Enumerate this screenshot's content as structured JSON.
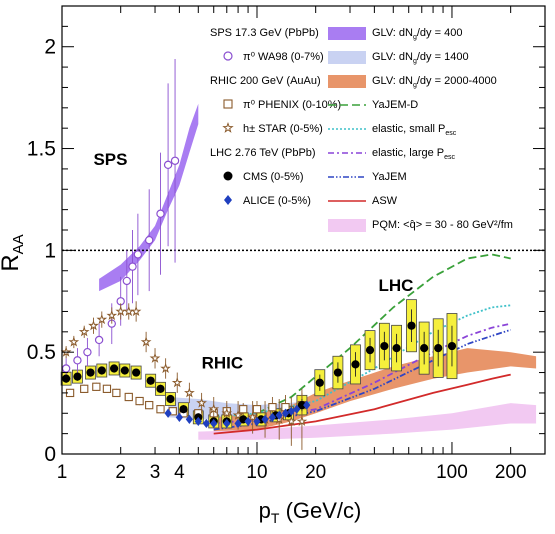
{
  "chart_data": {
    "type": "scatter",
    "xscale": "log",
    "xlim": [
      1,
      300
    ],
    "ylim": [
      0,
      2.2
    ],
    "xlabel": "p",
    "xlabel_sub": "T",
    "xlabel_units": " (GeV/c)",
    "ylabel": "R",
    "ylabel_sub": "AA",
    "x_ticks": [
      {
        "v": 1,
        "label": "1"
      },
      {
        "v": 2,
        "label": "2"
      },
      {
        "v": 3,
        "label": "3"
      },
      {
        "v": 4,
        "label": "4"
      },
      {
        "v": 10,
        "label": "10"
      },
      {
        "v": 20,
        "label": "20"
      },
      {
        "v": 100,
        "label": "100"
      },
      {
        "v": 200,
        "label": "200"
      }
    ],
    "y_ticks": [
      {
        "v": 0,
        "label": "0"
      },
      {
        "v": 0.5,
        "label": "0.5"
      },
      {
        "v": 1,
        "label": "1"
      },
      {
        "v": 1.5,
        "label": "1.5"
      },
      {
        "v": 2,
        "label": "2"
      }
    ],
    "reference_line": 1,
    "annotations": [
      {
        "text": "SPS",
        "x": 1.45,
        "y": 1.42,
        "color": "#8a4fd0"
      },
      {
        "text": "RHIC",
        "x": 5.2,
        "y": 0.42,
        "color": "#8a5a2b"
      },
      {
        "text": "LHC",
        "x": 42,
        "y": 0.8,
        "color": "#000000"
      }
    ],
    "legend_left": {
      "groups": [
        {
          "header": "SPS 17.3 GeV (PbPb)",
          "entries": [
            {
              "marker": "open-circle",
              "label": "π⁰  WA98 (0-7%)"
            }
          ]
        },
        {
          "header": "RHIC 200 GeV (AuAu)",
          "entries": [
            {
              "marker": "open-square",
              "label": "π⁰  PHENIX (0-10%)"
            },
            {
              "marker": "open-star",
              "label": "h±  STAR (0-5%)"
            }
          ]
        },
        {
          "header": "LHC 2.76 TeV (PbPb)",
          "entries": [
            {
              "marker": "filled-circle",
              "label": "CMS (0-5%)"
            },
            {
              "marker": "filled-diamond",
              "label": "ALICE (0-5%)"
            }
          ]
        }
      ]
    },
    "legend_right": [
      {
        "style": "band",
        "color": "#a97df2",
        "label": "GLV: dN",
        "sub": "g",
        "after": "/dy = 400"
      },
      {
        "style": "band",
        "color": "#c9d2f2",
        "label": "GLV: dN",
        "sub": "g",
        "after": "/dy = 1400"
      },
      {
        "style": "band",
        "color": "#e8956a",
        "label": "GLV: dN",
        "sub": "g",
        "after": "/dy = 2000-4000"
      },
      {
        "style": "dashed",
        "color": "#3aa13a",
        "label": "YaJEM-D",
        "sub": "",
        "after": ""
      },
      {
        "style": "dotted",
        "color": "#3fc1c9",
        "label": "elastic, small P",
        "sub": "esc",
        "after": ""
      },
      {
        "style": "dashdot",
        "color": "#8a44d8",
        "label": "elastic, large P",
        "sub": "esc",
        "after": ""
      },
      {
        "style": "dashdotdot",
        "color": "#2f45c4",
        "label": "YaJEM",
        "sub": "",
        "after": ""
      },
      {
        "style": "solid",
        "color": "#d22a2a",
        "label": "ASW",
        "sub": "",
        "after": ""
      },
      {
        "style": "band",
        "color": "#f2c9f2",
        "label": "PQM: <q̂> = 30 - 80 GeV",
        "sub": "",
        "after": "²/fm"
      }
    ],
    "series": [
      {
        "name": "WA98",
        "marker": "open-circle",
        "color": "#8a4fd0",
        "x": [
          0.9,
          1.05,
          1.2,
          1.35,
          1.55,
          1.8,
          2.0,
          2.15,
          2.3,
          2.45,
          2.8,
          3.2,
          3.5,
          3.8
        ],
        "y": [
          0.38,
          0.42,
          0.46,
          0.5,
          0.56,
          0.64,
          0.75,
          0.85,
          0.92,
          0.98,
          1.05,
          1.18,
          1.42,
          1.44
        ],
        "err": [
          0.04,
          0.05,
          0.06,
          0.07,
          0.08,
          0.1,
          0.12,
          0.15,
          0.18,
          0.2,
          0.25,
          0.3,
          0.4,
          0.5
        ]
      },
      {
        "name": "PHENIX",
        "marker": "open-square",
        "color": "#8a5a2b",
        "x": [
          1.1,
          1.3,
          1.5,
          1.7,
          1.9,
          2.2,
          2.5,
          2.8,
          3.2,
          3.7,
          4.2,
          5.0,
          6.0,
          7.0,
          8.5,
          10.0,
          12.0,
          14.0,
          17.0
        ],
        "y": [
          0.3,
          0.32,
          0.33,
          0.32,
          0.3,
          0.28,
          0.26,
          0.24,
          0.22,
          0.21,
          0.2,
          0.2,
          0.2,
          0.21,
          0.22,
          0.22,
          0.23,
          0.23,
          0.24
        ],
        "err": [
          0.02,
          0.02,
          0.02,
          0.02,
          0.02,
          0.02,
          0.02,
          0.02,
          0.02,
          0.02,
          0.02,
          0.02,
          0.03,
          0.03,
          0.03,
          0.04,
          0.05,
          0.06,
          0.08
        ]
      },
      {
        "name": "STAR",
        "marker": "open-star",
        "color": "#8a5a2b",
        "x": [
          1.05,
          1.15,
          1.3,
          1.45,
          1.6,
          1.8,
          2.0,
          2.2,
          2.4,
          2.7,
          3.0,
          3.4,
          3.9,
          4.5,
          5.2,
          6.0,
          7.0,
          8.0,
          9.5,
          11.0,
          13.0,
          15.0,
          17.0
        ],
        "y": [
          0.5,
          0.55,
          0.6,
          0.63,
          0.66,
          0.68,
          0.7,
          0.7,
          0.7,
          0.55,
          0.47,
          0.42,
          0.35,
          0.3,
          0.25,
          0.22,
          0.2,
          0.19,
          0.18,
          0.17,
          0.17,
          0.16,
          0.16
        ],
        "err": [
          0.03,
          0.03,
          0.03,
          0.04,
          0.04,
          0.04,
          0.04,
          0.04,
          0.05,
          0.05,
          0.05,
          0.05,
          0.05,
          0.05,
          0.05,
          0.06,
          0.06,
          0.07,
          0.08,
          0.09,
          0.1,
          0.12,
          0.14
        ]
      },
      {
        "name": "CMS",
        "marker": "filled-circle",
        "color": "#000000",
        "x": [
          1.05,
          1.2,
          1.4,
          1.6,
          1.85,
          2.1,
          2.4,
          2.85,
          3.2,
          3.6,
          4.2,
          5.0,
          6.0,
          7.0,
          8.5,
          10.5,
          12.5,
          14.5,
          17.0,
          21.0,
          26.0,
          32.0,
          38.0,
          45.0,
          52.0,
          62.0,
          72.0,
          85.0,
          100.0
        ],
        "y": [
          0.37,
          0.38,
          0.4,
          0.41,
          0.42,
          0.41,
          0.4,
          0.36,
          0.32,
          0.27,
          0.22,
          0.18,
          0.16,
          0.16,
          0.17,
          0.17,
          0.19,
          0.2,
          0.24,
          0.35,
          0.4,
          0.44,
          0.51,
          0.53,
          0.52,
          0.63,
          0.52,
          0.52,
          0.53
        ],
        "err": [
          0.02,
          0.02,
          0.02,
          0.02,
          0.02,
          0.02,
          0.02,
          0.02,
          0.02,
          0.02,
          0.02,
          0.02,
          0.02,
          0.02,
          0.02,
          0.02,
          0.02,
          0.02,
          0.03,
          0.04,
          0.05,
          0.06,
          0.06,
          0.07,
          0.07,
          0.08,
          0.08,
          0.09,
          0.1
        ]
      },
      {
        "name": "ALICE",
        "marker": "filled-diamond",
        "color": "#1f3fbf",
        "x": [
          3.5,
          4.0,
          4.5,
          5.0,
          5.5,
          6.0,
          7.0,
          8.0,
          9.0,
          10.0,
          11.0,
          12.0,
          13.0,
          14.0,
          15.0,
          16.0,
          18.0
        ],
        "y": [
          0.2,
          0.18,
          0.17,
          0.16,
          0.15,
          0.15,
          0.15,
          0.15,
          0.16,
          0.16,
          0.17,
          0.18,
          0.19,
          0.2,
          0.21,
          0.22,
          0.24
        ],
        "err": [
          0.01,
          0.01,
          0.01,
          0.01,
          0.01,
          0.01,
          0.01,
          0.01,
          0.01,
          0.01,
          0.01,
          0.01,
          0.01,
          0.02,
          0.02,
          0.02,
          0.02
        ]
      }
    ],
    "bands": [
      {
        "name": "GLV dNg/dy=400",
        "color": "#a97df2",
        "x": [
          1.55,
          2.0,
          2.5,
          3.0,
          3.5,
          4.0,
          4.5,
          5.0
        ],
        "ylow": [
          0.8,
          0.85,
          0.95,
          1.05,
          1.2,
          1.32,
          1.48,
          1.62
        ],
        "yhigh": [
          0.86,
          0.93,
          1.02,
          1.12,
          1.28,
          1.42,
          1.6,
          1.72
        ]
      },
      {
        "name": "GLV dNg/dy=1400",
        "color": "#c9d2f2",
        "x": [
          3.5,
          5.0,
          7.0,
          10.0,
          14.0,
          20.0
        ],
        "ylow": [
          0.18,
          0.17,
          0.17,
          0.18,
          0.2,
          0.22
        ],
        "yhigh": [
          0.28,
          0.27,
          0.25,
          0.24,
          0.25,
          0.26
        ]
      },
      {
        "name": "GLV dNg/dy=2000-4000",
        "color": "#e8956a",
        "x": [
          6.0,
          10.0,
          15.0,
          20.0,
          30.0,
          50.0,
          80.0,
          120.0,
          200.0,
          270.0
        ],
        "ylow": [
          0.1,
          0.12,
          0.16,
          0.2,
          0.26,
          0.32,
          0.37,
          0.4,
          0.43,
          0.42
        ],
        "yhigh": [
          0.18,
          0.2,
          0.24,
          0.3,
          0.36,
          0.43,
          0.48,
          0.52,
          0.5,
          0.48
        ]
      },
      {
        "name": "PQM",
        "color": "#f2c9f2",
        "x": [
          5.0,
          10.0,
          20.0,
          50.0,
          100.0,
          200.0,
          270.0
        ],
        "ylow": [
          0.07,
          0.07,
          0.08,
          0.1,
          0.12,
          0.15,
          0.15
        ],
        "yhigh": [
          0.11,
          0.12,
          0.14,
          0.17,
          0.2,
          0.25,
          0.24
        ]
      }
    ],
    "lines": [
      {
        "name": "YaJEM-D",
        "style": "dashed",
        "color": "#3aa13a",
        "x": [
          10,
          15,
          20,
          30,
          50,
          80,
          120,
          160,
          200
        ],
        "y": [
          0.2,
          0.28,
          0.38,
          0.52,
          0.72,
          0.87,
          0.96,
          0.98,
          0.96
        ]
      },
      {
        "name": "elastic, small Pesc",
        "style": "dotted",
        "color": "#3fc1c9",
        "x": [
          6,
          10,
          20,
          40,
          80,
          120,
          160,
          200
        ],
        "y": [
          0.18,
          0.2,
          0.26,
          0.42,
          0.6,
          0.68,
          0.72,
          0.73
        ]
      },
      {
        "name": "elastic, large Pesc",
        "style": "dashdot",
        "color": "#8a44d8",
        "x": [
          6,
          10,
          20,
          40,
          80,
          120,
          160,
          200
        ],
        "y": [
          0.15,
          0.17,
          0.22,
          0.35,
          0.5,
          0.58,
          0.62,
          0.64
        ]
      },
      {
        "name": "YaJEM",
        "style": "dashdotdot",
        "color": "#2f45c4",
        "x": [
          6,
          10,
          20,
          40,
          80,
          120,
          160,
          200
        ],
        "y": [
          0.12,
          0.15,
          0.21,
          0.32,
          0.46,
          0.54,
          0.58,
          0.61
        ]
      },
      {
        "name": "ASW",
        "style": "solid",
        "color": "#d22a2a",
        "x": [
          6,
          10,
          20,
          40,
          80,
          120,
          160,
          200
        ],
        "y": [
          0.1,
          0.12,
          0.16,
          0.22,
          0.3,
          0.34,
          0.37,
          0.39
        ]
      }
    ]
  }
}
